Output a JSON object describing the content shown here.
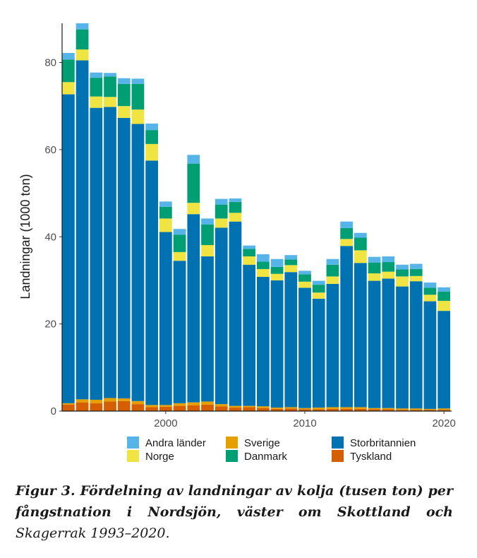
{
  "chart_data": {
    "type": "bar",
    "stacked": true,
    "ylabel": "Landningar (1000 ton)",
    "xlabel": "",
    "ylim": [
      0,
      89
    ],
    "xlim": [
      1992.55,
      2020.55
    ],
    "x_ticks": [
      2000,
      2010,
      2020
    ],
    "y_ticks": [
      0,
      20,
      40,
      60,
      80
    ],
    "grid": false,
    "legend_position": "bottom",
    "x": [
      1993,
      1994,
      1995,
      1996,
      1997,
      1998,
      1999,
      2000,
      2001,
      2002,
      2003,
      2004,
      2005,
      2006,
      2007,
      2008,
      2009,
      2010,
      2011,
      2012,
      2013,
      2014,
      2015,
      2016,
      2017,
      2018,
      2019,
      2020
    ],
    "series": [
      {
        "name": "Tyskland",
        "color": "#d55e00",
        "values": [
          1.5,
          2.0,
          1.8,
          2.2,
          2.3,
          1.6,
          0.9,
          1.0,
          1.2,
          1.3,
          1.5,
          1.1,
          0.8,
          0.9,
          0.7,
          0.5,
          0.6,
          0.4,
          0.4,
          0.5,
          0.5,
          0.5,
          0.4,
          0.4,
          0.3,
          0.3,
          0.3,
          0.3
        ]
      },
      {
        "name": "Sverige",
        "color": "#e69f00",
        "values": [
          0.3,
          0.7,
          0.8,
          0.8,
          0.6,
          0.7,
          0.5,
          0.4,
          0.6,
          0.7,
          0.7,
          0.5,
          0.4,
          0.3,
          0.4,
          0.3,
          0.3,
          0.3,
          0.4,
          0.4,
          0.4,
          0.4,
          0.3,
          0.3,
          0.3,
          0.3,
          0.2,
          0.3
        ]
      },
      {
        "name": "Storbritannien",
        "color": "#0072b2",
        "values": [
          70.9,
          77.8,
          67.0,
          66.8,
          64.4,
          63.6,
          56.1,
          39.7,
          32.7,
          43.2,
          33.3,
          40.5,
          42.3,
          32.4,
          29.7,
          29.2,
          31.0,
          27.6,
          25.0,
          28.3,
          37.0,
          33.1,
          29.2,
          29.7,
          28.0,
          29.2,
          24.7,
          22.4
        ]
      },
      {
        "name": "Norge",
        "color": "#f0e442",
        "values": [
          2.8,
          2.5,
          2.6,
          2.3,
          2.7,
          3.3,
          3.8,
          3.1,
          2.0,
          2.6,
          2.6,
          2.1,
          2.0,
          1.9,
          1.8,
          1.5,
          1.6,
          1.4,
          1.4,
          1.7,
          1.6,
          2.9,
          1.7,
          1.6,
          2.3,
          1.2,
          1.5,
          2.3
        ]
      },
      {
        "name": "Danmark",
        "color": "#009e73",
        "values": [
          5.2,
          4.6,
          4.3,
          4.7,
          5.1,
          5.9,
          3.2,
          2.7,
          4.0,
          9.0,
          4.7,
          3.2,
          2.5,
          1.7,
          1.7,
          1.6,
          1.3,
          1.7,
          1.8,
          2.7,
          2.5,
          2.9,
          2.5,
          2.2,
          1.6,
          1.6,
          1.6,
          2.1
        ]
      },
      {
        "name": "Andra länder",
        "color": "#56b4e9",
        "values": [
          1.5,
          1.4,
          1.2,
          0.8,
          1.3,
          1.2,
          1.5,
          1.2,
          1.3,
          2.0,
          1.4,
          1.3,
          0.8,
          0.8,
          1.7,
          1.8,
          1.0,
          0.8,
          0.9,
          1.3,
          1.5,
          1.1,
          1.3,
          1.3,
          1.1,
          1.2,
          1.2,
          1.0
        ]
      }
    ],
    "legend_order": [
      "Andra länder",
      "Norge",
      "Sverige",
      "Danmark",
      "Storbritannien",
      "Tyskland"
    ]
  },
  "caption": {
    "bold_part": "Figur 3. Fördelning av landningar av kolja (tusen ton) per fångstnation i Nordsjön, väster om Skottland och",
    "italic_part": "Skagerrak 1993–2020."
  }
}
